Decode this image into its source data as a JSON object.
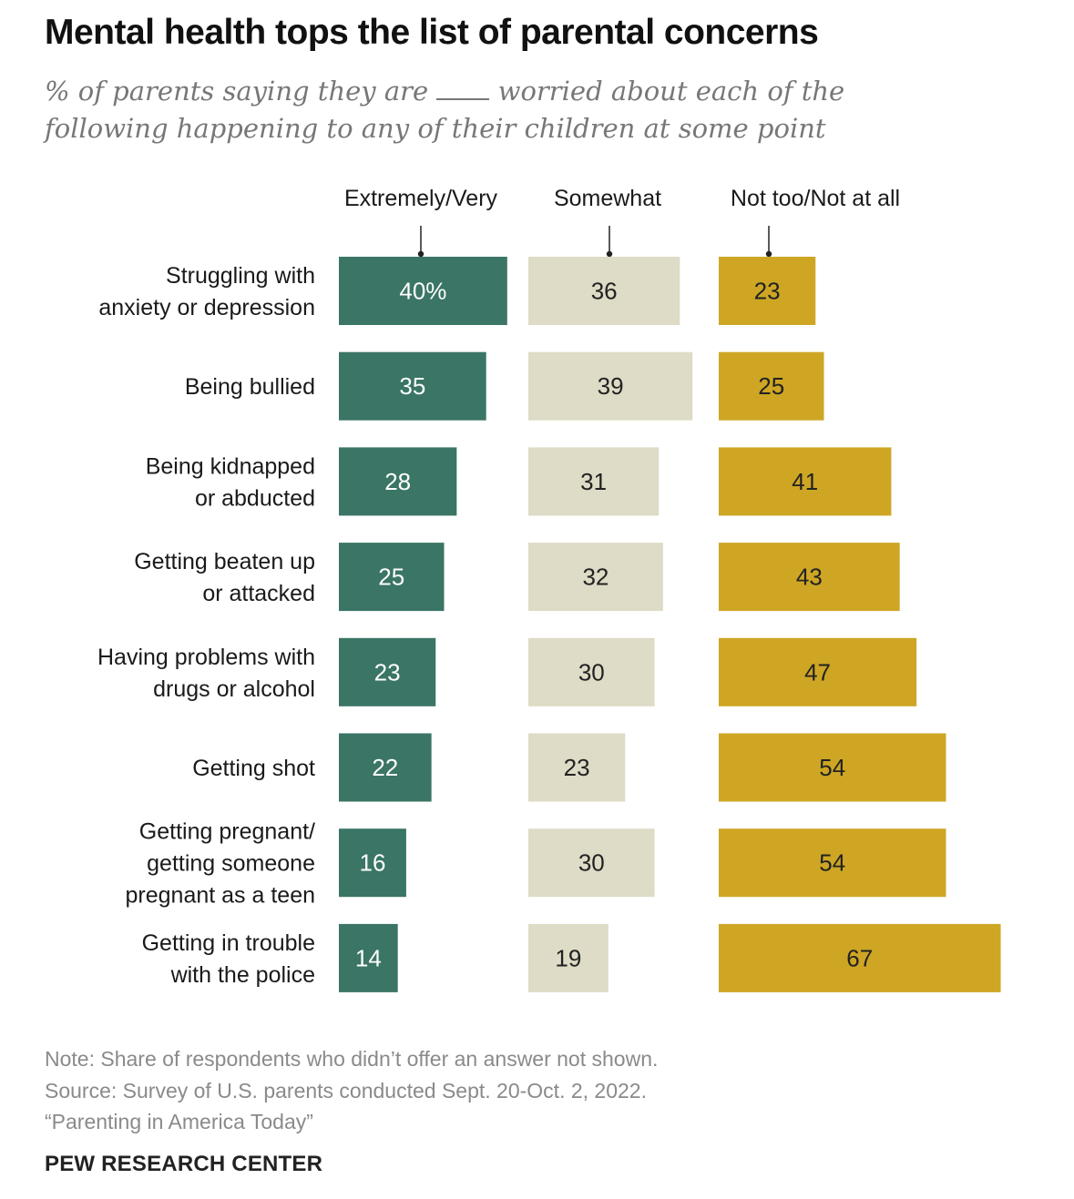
{
  "title": "Mental health tops the list of parental concerns",
  "subtitle_before": "% of parents saying they are",
  "subtitle_after": "worried about each of the following happening to any of their children at some point",
  "note": "Note: Share of respondents who didn’t offer an answer not shown.",
  "source": "Source: Survey of U.S. parents conducted Sept. 20-Oct. 2, 2022.",
  "report": "“Parenting in America Today”",
  "brand": "PEW RESEARCH CENTER",
  "colors": {
    "extremely_very": "#3a7565",
    "somewhat": "#dedbc6",
    "not_too": "#cea624",
    "label_text_dark_bar": "#ffffff",
    "label_text_light_bar": "#222222"
  },
  "chart_data": {
    "type": "bar",
    "orientation": "horizontal",
    "layout": "small-multiples-columns",
    "unit": "%",
    "first_label_suffix": "%",
    "categories": [
      [
        "Struggling with",
        "anxiety or depression"
      ],
      [
        "Being bullied"
      ],
      [
        "Being kidnapped",
        "or abducted"
      ],
      [
        "Getting beaten up",
        "or attacked"
      ],
      [
        "Having problems with",
        "drugs or alcohol"
      ],
      [
        "Getting shot"
      ],
      [
        "Getting pregnant/",
        "getting someone",
        "pregnant as a teen"
      ],
      [
        "Getting in trouble",
        "with the police"
      ]
    ],
    "series": [
      {
        "name": "Extremely/Very",
        "values": [
          40,
          35,
          28,
          25,
          23,
          22,
          16,
          14
        ]
      },
      {
        "name": "Somewhat",
        "values": [
          36,
          39,
          31,
          32,
          30,
          23,
          30,
          19
        ]
      },
      {
        "name": "Not too/Not at all",
        "values": [
          23,
          25,
          41,
          43,
          47,
          54,
          54,
          67
        ]
      }
    ]
  }
}
